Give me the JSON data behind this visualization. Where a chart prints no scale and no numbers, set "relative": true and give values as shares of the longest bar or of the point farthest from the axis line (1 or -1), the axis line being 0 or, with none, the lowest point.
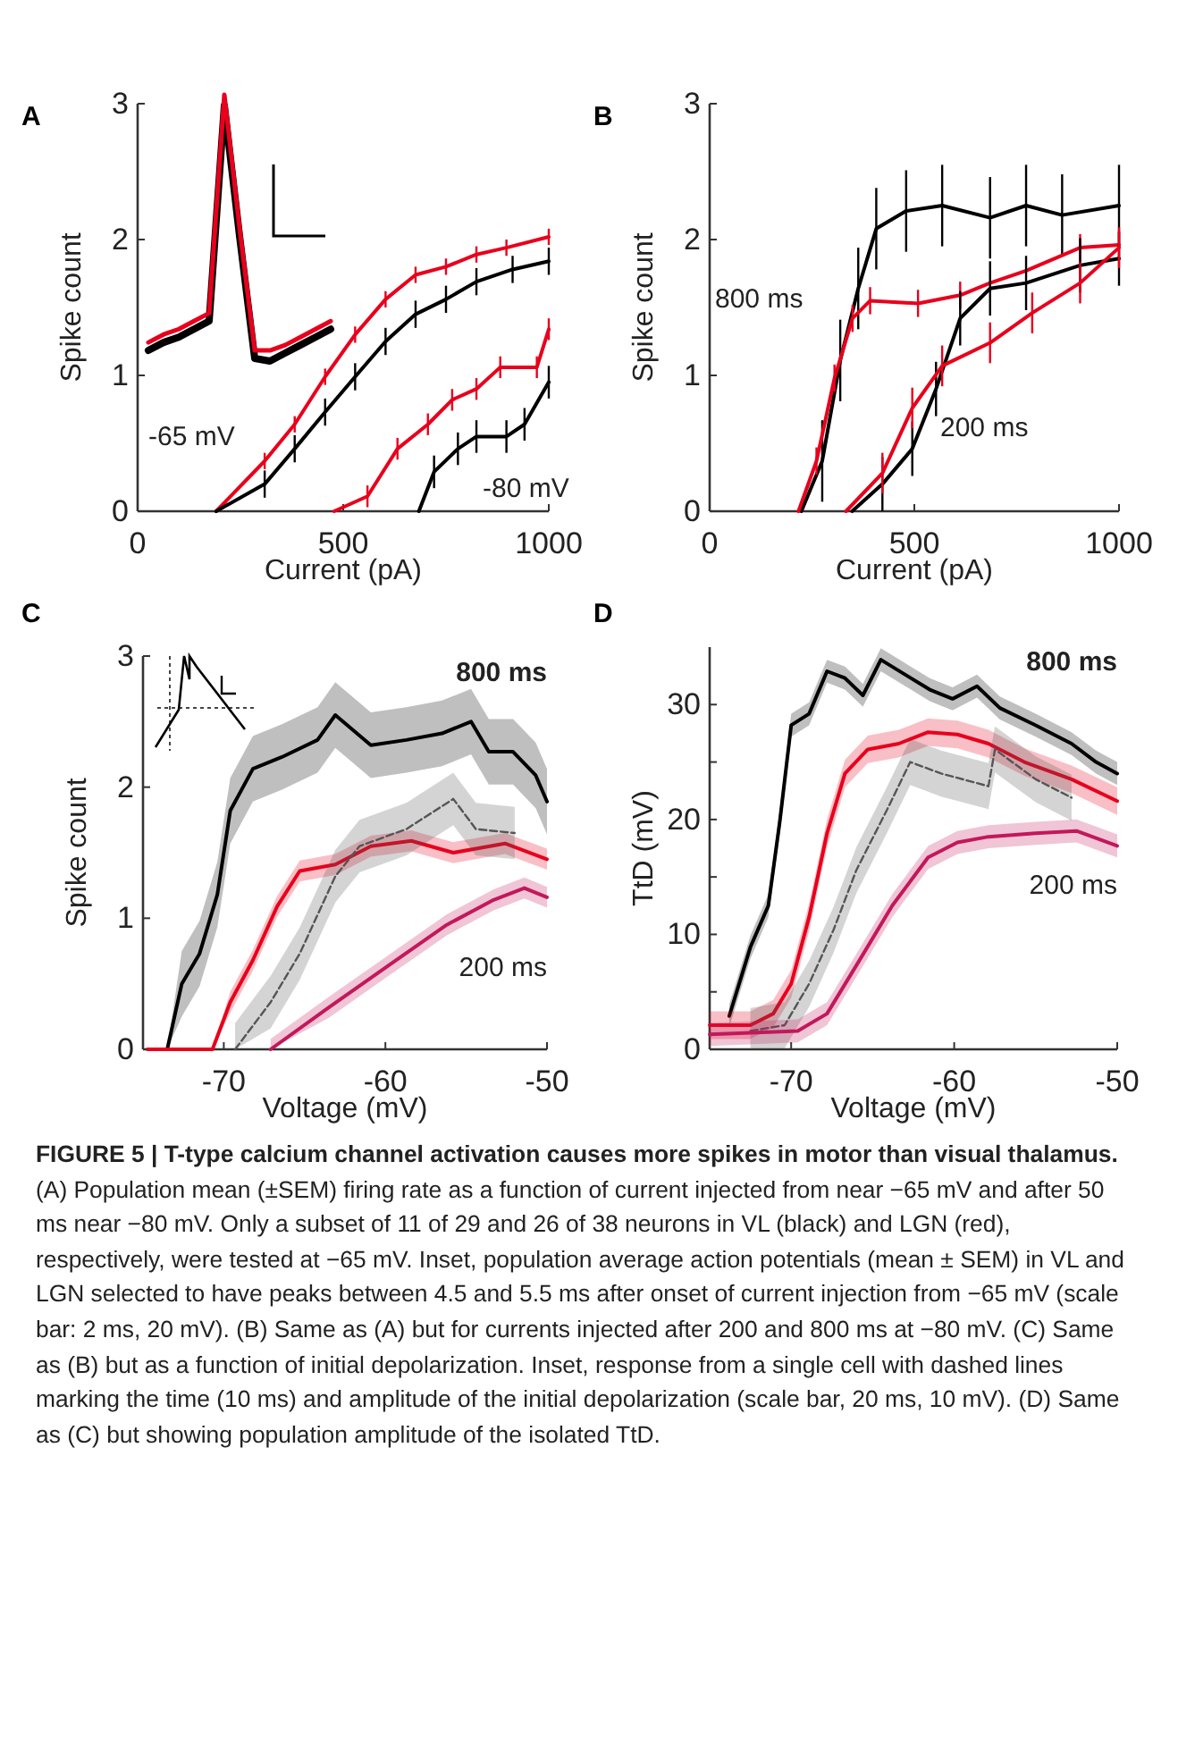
{
  "chart_data": [
    {
      "type": "line",
      "title": "A",
      "xlabel": "Current (pA)",
      "ylabel": "Spike count",
      "xlim": [
        0,
        1000
      ],
      "ylim": [
        0,
        3
      ],
      "xticks": [
        0,
        500,
        1000
      ],
      "yticks": [
        0,
        1,
        2,
        3
      ],
      "series": [
        {
          "color": "#e8001c",
          "x": [
            191,
            309,
            382,
            456,
            529,
            603,
            676,
            750,
            824,
            897,
            1000
          ],
          "values": [
            0,
            0.37,
            0.64,
            0.99,
            1.3,
            1.56,
            1.74,
            1.8,
            1.89,
            1.94,
            2.02
          ],
          "errors": [
            null,
            0.06,
            0.06,
            0.06,
            0.06,
            0.06,
            0.06,
            0.06,
            0.06,
            0.06,
            0.06
          ]
        },
        {
          "color": "#000000",
          "x": [
            191,
            309,
            382,
            456,
            529,
            603,
            676,
            750,
            824,
            912,
            1000
          ],
          "values": [
            0,
            0.2,
            0.46,
            0.73,
            0.99,
            1.25,
            1.45,
            1.56,
            1.69,
            1.78,
            1.84
          ],
          "errors": [
            null,
            0.1,
            0.1,
            0.1,
            0.1,
            0.1,
            0.1,
            0.1,
            0.1,
            0.1,
            0.1
          ]
        },
        {
          "color": "#e8001c",
          "x": [
            478,
            559,
            632,
            706,
            765,
            824,
            882,
            971,
            1000
          ],
          "values": [
            0,
            0.11,
            0.46,
            0.64,
            0.82,
            0.9,
            1.06,
            1.06,
            1.34
          ],
          "errors": [
            null,
            0.08,
            0.08,
            0.08,
            0.08,
            0.08,
            0.08,
            0.08,
            0.08
          ]
        },
        {
          "color": "#000000",
          "x": [
            684,
            721,
            779,
            824,
            897,
            941,
            1000
          ],
          "values": [
            0,
            0.29,
            0.46,
            0.55,
            0.55,
            0.64,
            0.95
          ],
          "errors": [
            null,
            0.12,
            0.12,
            0.12,
            0.12,
            0.12,
            0.12
          ]
        }
      ],
      "annotations": [
        "-65 mV",
        "-80 mV"
      ]
    },
    {
      "type": "line",
      "relative": true,
      "categories": [
        null,
        null,
        null,
        null,
        null,
        null,
        null,
        null,
        null,
        null,
        null,
        null,
        null
      ],
      "series": [
        {
          "color": "#000000",
          "values": [
            0.04,
            0.07,
            0.09,
            0.12,
            0.15,
            0.96,
            0.47,
            0.01,
            0,
            0.03,
            0.06,
            0.09,
            0.12
          ]
        },
        {
          "color": "#e8001c",
          "values": [
            0.07,
            0.1,
            0.12,
            0.15,
            0.18,
            1,
            0.5,
            0.04,
            0.04,
            0.06,
            0.09,
            0.12,
            0.15
          ]
        }
      ]
    },
    {
      "type": "line",
      "title": "B",
      "xlabel": "Current (pA)",
      "ylabel": "Spike count",
      "xlim": [
        0,
        1000
      ],
      "ylim": [
        0,
        3
      ],
      "xticks": [
        0,
        500,
        1000
      ],
      "yticks": [
        0,
        1,
        2,
        3
      ],
      "series": [
        {
          "color": "#000000",
          "x": [
            224,
            275,
            319,
            363,
            407,
            480,
            568,
            685,
            773,
            861,
            1000
          ],
          "values": [
            0,
            0.37,
            1.11,
            1.64,
            2.08,
            2.21,
            2.25,
            2.16,
            2.25,
            2.18,
            2.25
          ],
          "errors": [
            null,
            0.3,
            0.3,
            0.3,
            0.3,
            0.3,
            0.3,
            0.3,
            0.3,
            0.3,
            0.3
          ]
        },
        {
          "color": "#e8001c",
          "x": [
            217,
            261,
            305,
            349,
            392,
            509,
            612,
            685,
            773,
            905,
            1000
          ],
          "values": [
            0,
            0.37,
            0.98,
            1.42,
            1.55,
            1.53,
            1.59,
            1.68,
            1.77,
            1.94,
            1.96
          ],
          "errors": [
            null,
            0.1,
            0.1,
            0.1,
            0.1,
            0.1,
            0.1,
            null,
            null,
            0.1,
            0.1
          ]
        },
        {
          "color": "#000000",
          "x": [
            348,
            422,
            495,
            553,
            612,
            685,
            773,
            905,
            1000
          ],
          "values": [
            0,
            0.2,
            0.46,
            0.9,
            1.42,
            1.64,
            1.68,
            1.81,
            1.86
          ],
          "errors": [
            null,
            0.2,
            0.2,
            0.2,
            0.2,
            0.2,
            0.2,
            0.2,
            0.2
          ]
        },
        {
          "color": "#e8001c",
          "x": [
            333,
            422,
            495,
            568,
            685,
            788,
            905,
            1000
          ],
          "values": [
            0,
            0.28,
            0.76,
            1.07,
            1.24,
            1.46,
            1.68,
            1.94
          ],
          "errors": [
            null,
            0.15,
            0.15,
            0.15,
            0.15,
            0.15,
            0.15,
            0.15
          ]
        }
      ],
      "annotations": [
        "800 ms",
        "200 ms"
      ]
    },
    {
      "type": "line",
      "title": "C",
      "xlabel": "Voltage (mV)",
      "ylabel": "Spike count",
      "xlim": [
        -75,
        -50
      ],
      "ylim": [
        0,
        3
      ],
      "xticks": [
        -70,
        -60,
        -50
      ],
      "yticks": [
        0,
        1,
        2,
        3
      ],
      "series": [
        {
          "color": "#000000",
          "x": [
            -74.7,
            -73.5,
            -72.6,
            -71.5,
            -70.4,
            -69.6,
            -68.2,
            -66.4,
            -64.2,
            -63.1,
            -60.9,
            -58.7,
            -56.5,
            -54.7,
            -53.6,
            -52.1,
            -50.7,
            -50
          ],
          "values": [
            0,
            0,
            0.5,
            0.73,
            1.18,
            1.82,
            2.14,
            2.23,
            2.36,
            2.55,
            2.32,
            2.36,
            2.41,
            2.5,
            2.27,
            2.27,
            2.09,
            1.89
          ],
          "lower": [
            0,
            0,
            0.25,
            0.48,
            0.93,
            1.57,
            1.89,
            1.98,
            2.11,
            2.3,
            2.07,
            2.11,
            2.16,
            2.25,
            2.02,
            2.02,
            1.84,
            1.64
          ],
          "upper": [
            0,
            0,
            0.75,
            0.98,
            1.43,
            2.07,
            2.39,
            2.48,
            2.61,
            2.8,
            2.57,
            2.61,
            2.66,
            2.75,
            2.52,
            2.52,
            2.34,
            2.14
          ]
        },
        {
          "color": "#e8001c",
          "x": [
            -74.7,
            -70.7,
            -69.6,
            -68.2,
            -66.7,
            -65.3,
            -63.1,
            -60.9,
            -58.4,
            -55.8,
            -52.6,
            -50
          ],
          "values": [
            0,
            0,
            0.36,
            0.68,
            1.09,
            1.36,
            1.41,
            1.55,
            1.59,
            1.5,
            1.57,
            1.45
          ],
          "lower": [
            0,
            0,
            0.28,
            0.6,
            1.01,
            1.28,
            1.33,
            1.47,
            1.51,
            1.42,
            1.49,
            1.37
          ],
          "upper": [
            0,
            0,
            0.44,
            0.76,
            1.17,
            1.44,
            1.49,
            1.63,
            1.67,
            1.58,
            1.65,
            1.53
          ]
        },
        {
          "color": "#555555",
          "line_style": "dashed",
          "x": [
            -69.3,
            -67.1,
            -65.3,
            -63.1,
            -61.6,
            -58.7,
            -55.8,
            -54.4,
            -52
          ],
          "values": [
            0,
            0.36,
            0.73,
            1.32,
            1.55,
            1.68,
            1.91,
            1.68,
            1.65
          ],
          "lower": [
            0,
            0.16,
            0.53,
            1.12,
            1.35,
            1.48,
            1.71,
            1.48,
            1.45
          ],
          "upper": [
            0.2,
            0.56,
            0.93,
            1.52,
            1.75,
            1.88,
            2.11,
            1.88,
            1.85
          ]
        },
        {
          "color": "#c2185b",
          "x": [
            -67.1,
            -63.5,
            -59.8,
            -56.2,
            -53.3,
            -51.4,
            -50
          ],
          "values": [
            0,
            0.32,
            0.64,
            0.95,
            1.14,
            1.23,
            1.16
          ],
          "lower": [
            0,
            0.24,
            0.56,
            0.87,
            1.06,
            1.15,
            1.08
          ],
          "upper": [
            0.08,
            0.4,
            0.72,
            1.03,
            1.22,
            1.31,
            1.24
          ]
        }
      ],
      "annotations": [
        "800 ms",
        "200 ms"
      ]
    },
    {
      "type": "line",
      "title": "D",
      "xlabel": "Voltage (mV)",
      "ylabel": "TtD (mV)",
      "xlim": [
        -75,
        -50
      ],
      "ylim": [
        0,
        35
      ],
      "xticks": [
        -70,
        -60,
        -50
      ],
      "yticks": [
        0,
        {
          "value": 5,
          "label": null
        },
        10,
        {
          "value": 15,
          "label": null
        },
        20,
        {
          "value": 25,
          "label": null
        },
        30
      ],
      "series": [
        {
          "color": "#000000",
          "x": [
            -73.8,
            -72.5,
            -71.4,
            -70.7,
            -70,
            -68.9,
            -67.8,
            -66.7,
            -65.6,
            -64.5,
            -63,
            -61.5,
            -60.1,
            -58.6,
            -57.2,
            -55,
            -52.8,
            -51.3,
            -50
          ],
          "values": [
            2.9,
            8.9,
            12.5,
            19.8,
            28.2,
            29.2,
            32.9,
            32.3,
            30.8,
            33.9,
            32.6,
            31.3,
            30.5,
            31.6,
            29.7,
            28.2,
            26.6,
            25,
            24
          ],
          "lower": [
            1.9,
            7.9,
            11.5,
            18.8,
            27.2,
            28.2,
            31.9,
            31.3,
            29.8,
            32.9,
            31.6,
            30.3,
            29.5,
            30.6,
            28.7,
            27.2,
            25.6,
            24,
            23
          ],
          "upper": [
            3.9,
            9.9,
            13.5,
            20.8,
            29.2,
            30.2,
            33.9,
            33.3,
            31.8,
            34.9,
            33.6,
            32.3,
            31.5,
            32.6,
            30.7,
            29.2,
            27.6,
            26,
            25
          ]
        },
        {
          "color": "#e8001c",
          "x": [
            -75,
            -72.5,
            -71.1,
            -70,
            -68.9,
            -67.8,
            -66.7,
            -65.3,
            -63.4,
            -61.6,
            -59.8,
            -57.9,
            -55.7,
            -52.8,
            -50
          ],
          "values": [
            2.1,
            2.1,
            3.1,
            5.7,
            11.5,
            18.8,
            24,
            26.1,
            26.6,
            27.6,
            27.4,
            26.6,
            25,
            23.5,
            21.6
          ],
          "lower": [
            0.9,
            0.9,
            1.9,
            4.5,
            10.3,
            17.6,
            22.8,
            24.9,
            25.4,
            26.4,
            26.2,
            25.4,
            23.8,
            22.3,
            20.4
          ],
          "upper": [
            3.3,
            3.3,
            4.3,
            6.9,
            12.7,
            20,
            25.2,
            27.3,
            27.8,
            28.8,
            28.6,
            27.8,
            26.2,
            24.7,
            22.8
          ]
        },
        {
          "color": "#555555",
          "line_style": "dashed",
          "x": [
            -72.5,
            -70.4,
            -68.9,
            -67.4,
            -66,
            -64.1,
            -62.7,
            -60.8,
            -57.9,
            -57.5,
            -55,
            -52.8
          ],
          "values": [
            1.6,
            2.1,
            5.7,
            10.4,
            15.6,
            20.9,
            25,
            24,
            22.9,
            26.1,
            23.5,
            21.9
          ],
          "lower": [
            0,
            0.1,
            3.7,
            8.4,
            13.6,
            18.9,
            23,
            22,
            20.9,
            24.1,
            21.5,
            19.9
          ],
          "upper": [
            3.6,
            4.1,
            7.7,
            12.4,
            17.6,
            22.9,
            27,
            26,
            24.9,
            28.1,
            25.5,
            23.9
          ]
        },
        {
          "color": "#c2185b",
          "x": [
            -75,
            -69.6,
            -67.8,
            -66,
            -63.8,
            -61.6,
            -59.8,
            -57.9,
            -55,
            -52.5,
            -50
          ],
          "values": [
            1.3,
            1.6,
            3.1,
            7.3,
            12.5,
            16.7,
            18,
            18.5,
            18.8,
            19,
            17.7
          ],
          "lower": [
            0.3,
            0.6,
            2.1,
            6.3,
            11.5,
            15.7,
            17,
            17.5,
            17.8,
            18,
            16.7
          ],
          "upper": [
            2.3,
            2.6,
            4.1,
            8.3,
            13.5,
            17.7,
            19,
            19.5,
            19.8,
            20,
            18.7
          ]
        }
      ],
      "annotations": [
        "800 ms",
        "200 ms"
      ]
    },
    {
      "type": "other",
      "title": "FIGURE 5 | T-type calcium channel activation causes more spikes in motor than visual thalamus.",
      "annotations": [
        "(A) Population mean (±SEM) firing rate as a function of current injected from near −65 mV and after 50 ms near −80 mV. Only a subset of 11 of 29 and 26 of 38 neurons in VL (black) and LGN (red), respectively, were tested at −65 mV. Inset, population average action potentials (mean ± SEM) in VL and LGN selected to have peaks between 4.5 and 5.5 ms after onset of current injection from −65 mV (scale bar: 2 ms, 20 mV). (B) Same as (A) but for currents injected after 200 and 800 ms at −80 mV. (C) Same as (B) but as a function of initial depolarization. Inset, response from a single cell with dashed lines marking the time (10 ms) and amplitude of the initial depolarization (scale bar, 20 ms, 10 mV). (D) Same as (C) but showing population amplitude of the isolated TtD."
      ]
    }
  ]
}
